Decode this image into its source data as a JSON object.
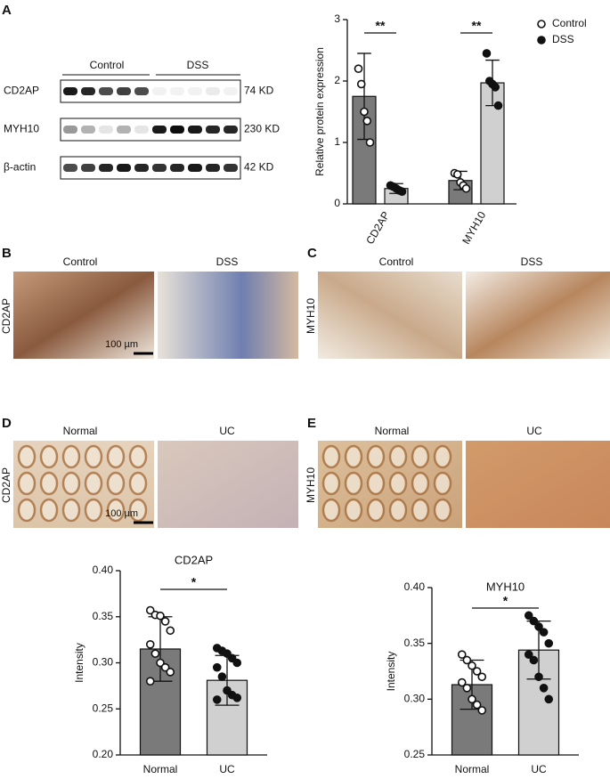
{
  "panel_labels": [
    "A",
    "B",
    "C",
    "D",
    "E"
  ],
  "blot": {
    "groups": [
      "Control",
      "DSS"
    ],
    "rows": [
      {
        "name": "CD2AP",
        "size": "74 KD"
      },
      {
        "name": "MYH10",
        "size": "230 KD"
      },
      {
        "name": "β-actin",
        "size": "42 KD"
      }
    ]
  },
  "ihc": [
    {
      "stain": "CD2AP",
      "groups": [
        "Control",
        "DSS"
      ],
      "scale": "100 µm"
    },
    {
      "stain": "MYH10",
      "groups": [
        "Control",
        "DSS"
      ]
    },
    {
      "stain": "CD2AP",
      "groups": [
        "Normal",
        "UC"
      ],
      "scale": "100 µm"
    },
    {
      "stain": "MYH10",
      "groups": [
        "Normal",
        "UC"
      ]
    }
  ],
  "chart_data": [
    {
      "type": "bar",
      "ylabel": "Relative protein expression",
      "categories": [
        "CD2AP",
        "MYH10"
      ],
      "series": [
        {
          "name": "Control",
          "color": "#7a7a7a",
          "marker": "open",
          "values": [
            1.75,
            0.38
          ],
          "errors": [
            0.7,
            0.15
          ],
          "points": [
            [
              2.2,
              1.95,
              1.5,
              1.35,
              1.0
            ],
            [
              0.5,
              0.48,
              0.35,
              0.3,
              0.25
            ]
          ]
        },
        {
          "name": "DSS",
          "color": "#d0d0d0",
          "marker": "filled",
          "values": [
            0.25,
            1.97
          ],
          "errors": [
            0.08,
            0.37
          ],
          "points": [
            [
              0.3,
              0.28,
              0.25,
              0.22,
              0.2
            ],
            [
              2.45,
              2.0,
              1.95,
              1.9,
              1.6
            ]
          ]
        }
      ],
      "ylim": [
        0,
        3
      ],
      "yticks": [
        0,
        1,
        2,
        3
      ],
      "significance": [
        "**",
        "**"
      ],
      "legend": "top-right"
    },
    {
      "type": "bar",
      "title": "CD2AP",
      "ylabel": "Intensity",
      "categories": [
        "Normal",
        "UC"
      ],
      "colors": [
        "#7a7a7a",
        "#d0d0d0"
      ],
      "markers": [
        "open",
        "filled"
      ],
      "values": [
        0.315,
        0.281
      ],
      "errors": [
        0.035,
        0.027
      ],
      "points": [
        [
          0.357,
          0.352,
          0.351,
          0.345,
          0.335,
          0.32,
          0.31,
          0.3,
          0.295,
          0.29,
          0.28
        ],
        [
          0.316,
          0.313,
          0.31,
          0.305,
          0.3,
          0.295,
          0.285,
          0.27,
          0.265,
          0.262,
          0.26
        ]
      ],
      "ylim": [
        0.2,
        0.4
      ],
      "yticks": [
        {
          "value": 0.2,
          "label": "0.20"
        },
        {
          "value": 0.25,
          "label": "0.25"
        },
        {
          "value": 0.3,
          "label": "0.30"
        },
        {
          "value": 0.35,
          "label": "0.35"
        },
        {
          "value": 0.4,
          "label": "0.40"
        }
      ],
      "significance": "*"
    },
    {
      "type": "bar",
      "title": "MYH10",
      "ylabel": "Intensity",
      "categories": [
        "Normal",
        "UC"
      ],
      "colors": [
        "#7a7a7a",
        "#d0d0d0"
      ],
      "markers": [
        "open",
        "filled"
      ],
      "values": [
        0.313,
        0.344
      ],
      "errors": [
        0.022,
        0.026
      ],
      "points": [
        [
          0.34,
          0.335,
          0.33,
          0.325,
          0.32,
          0.315,
          0.31,
          0.3,
          0.295,
          0.29
        ],
        [
          0.375,
          0.37,
          0.365,
          0.36,
          0.35,
          0.34,
          0.335,
          0.32,
          0.31,
          0.3
        ]
      ],
      "ylim": [
        0.25,
        0.4
      ],
      "yticks": [
        {
          "value": 0.25,
          "label": "0.25"
        },
        {
          "value": 0.3,
          "label": "0.30"
        },
        {
          "value": 0.35,
          "label": "0.35"
        },
        {
          "value": 0.4,
          "label": "0.40"
        }
      ],
      "significance": "*"
    }
  ]
}
